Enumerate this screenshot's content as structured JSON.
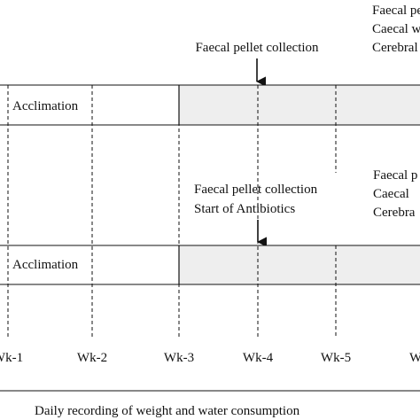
{
  "protocol_1": {
    "top_right_lines": [
      "Faecal pe",
      "Caecal w",
      "Cerebral"
    ],
    "arrow_label": "Faecal pellet collection",
    "phase_label": "Acclimation"
  },
  "protocol_2": {
    "right_lines": [
      "Faecal p",
      "Caecal",
      "Cerebra"
    ],
    "arrow_label_line1": "Faecal pellet collection",
    "arrow_label_line2": "Start of Antibiotics",
    "phase_label": "Acclimation"
  },
  "timeline": {
    "week_labels": [
      "Wk-1",
      "Wk-2",
      "Wk-3",
      "Wk-4",
      "Wk-5",
      "W"
    ]
  },
  "footer": {
    "caption": "Daily recording of weight and water consumption"
  },
  "colors": {
    "shade": "#eeeeee",
    "line": "#111111"
  }
}
